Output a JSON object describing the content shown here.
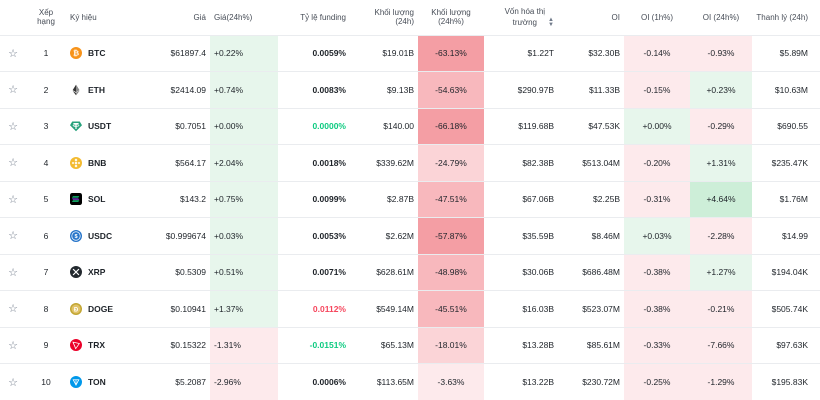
{
  "headers": {
    "rank": "Xếp hạng",
    "symbol": "Ký hiệu",
    "price": "Giá",
    "change": "Giá(24h%)",
    "funding": "Tỷ lệ funding",
    "vol": "Khối lượng (24h)",
    "vol_pct": "Khối lượng (24h%)",
    "mcap_line1": "Vốn hóa thị",
    "mcap_line2": "trường",
    "oi": "OI",
    "oi_1h": "OI (1h%)",
    "oi_24h": "OI (24h%)",
    "liq": "Thanh lý (24h)"
  },
  "colors": {
    "positive": "#0ecb81",
    "negative": "#f6465d"
  },
  "rows": [
    {
      "rank": "1",
      "symbol": "BTC",
      "icon": "btc-icon",
      "price": "$61897.4",
      "change": "+0.22%",
      "funding": "0.0059%",
      "vol": "$19.01B",
      "vol_pct": "-63.13%",
      "mcap": "$1.22T",
      "oi": "$32.30B",
      "oi_1h": "-0.14%",
      "oi_24h": "-0.93%",
      "liq": "$5.89M"
    },
    {
      "rank": "2",
      "symbol": "ETH",
      "icon": "eth-icon",
      "price": "$2414.09",
      "change": "+0.74%",
      "funding": "0.0083%",
      "vol": "$9.13B",
      "vol_pct": "-54.63%",
      "mcap": "$290.97B",
      "oi": "$11.33B",
      "oi_1h": "-0.15%",
      "oi_24h": "+0.23%",
      "liq": "$10.63M"
    },
    {
      "rank": "3",
      "symbol": "USDT",
      "icon": "usdt-icon",
      "price": "$0.7051",
      "change": "+0.00%",
      "funding": "0.0000%",
      "vol": "$140.00",
      "vol_pct": "-66.18%",
      "mcap": "$119.68B",
      "oi": "$47.53K",
      "oi_1h": "+0.00%",
      "oi_24h": "-0.29%",
      "liq": "$690.55"
    },
    {
      "rank": "4",
      "symbol": "BNB",
      "icon": "bnb-icon",
      "price": "$564.17",
      "change": "+2.04%",
      "funding": "0.0018%",
      "vol": "$339.62M",
      "vol_pct": "-24.79%",
      "mcap": "$82.38B",
      "oi": "$513.04M",
      "oi_1h": "-0.20%",
      "oi_24h": "+1.31%",
      "liq": "$235.47K"
    },
    {
      "rank": "5",
      "symbol": "SOL",
      "icon": "sol-icon",
      "price": "$143.2",
      "change": "+0.75%",
      "funding": "0.0099%",
      "vol": "$2.87B",
      "vol_pct": "-47.51%",
      "mcap": "$67.06B",
      "oi": "$2.25B",
      "oi_1h": "-0.31%",
      "oi_24h": "+4.64%",
      "liq": "$1.76M"
    },
    {
      "rank": "6",
      "symbol": "USDC",
      "icon": "usdc-icon",
      "price": "$0.999674",
      "change": "+0.03%",
      "funding": "0.0053%",
      "vol": "$2.62M",
      "vol_pct": "-57.87%",
      "mcap": "$35.59B",
      "oi": "$8.46M",
      "oi_1h": "+0.03%",
      "oi_24h": "-2.28%",
      "liq": "$14.99"
    },
    {
      "rank": "7",
      "symbol": "XRP",
      "icon": "xrp-icon",
      "price": "$0.5309",
      "change": "+0.51%",
      "funding": "0.0071%",
      "vol": "$628.61M",
      "vol_pct": "-48.98%",
      "mcap": "$30.06B",
      "oi": "$686.48M",
      "oi_1h": "-0.38%",
      "oi_24h": "+1.27%",
      "liq": "$194.04K"
    },
    {
      "rank": "8",
      "symbol": "DOGE",
      "icon": "doge-icon",
      "price": "$0.10941",
      "change": "+1.37%",
      "funding": "0.0112%",
      "vol": "$549.14M",
      "vol_pct": "-45.51%",
      "mcap": "$16.03B",
      "oi": "$523.07M",
      "oi_1h": "-0.38%",
      "oi_24h": "-0.21%",
      "liq": "$505.74K"
    },
    {
      "rank": "9",
      "symbol": "TRX",
      "icon": "trx-icon",
      "price": "$0.15322",
      "change": "-1.31%",
      "funding": "-0.0151%",
      "vol": "$65.13M",
      "vol_pct": "-18.01%",
      "mcap": "$13.28B",
      "oi": "$85.61M",
      "oi_1h": "-0.33%",
      "oi_24h": "-7.66%",
      "liq": "$97.63K"
    },
    {
      "rank": "10",
      "symbol": "TON",
      "icon": "ton-icon",
      "price": "$5.2087",
      "change": "-2.96%",
      "funding": "0.0006%",
      "vol": "$113.65M",
      "vol_pct": "-3.63%",
      "mcap": "$13.22B",
      "oi": "$230.72M",
      "oi_1h": "-0.25%",
      "oi_24h": "-1.29%",
      "liq": "$195.83K"
    }
  ]
}
